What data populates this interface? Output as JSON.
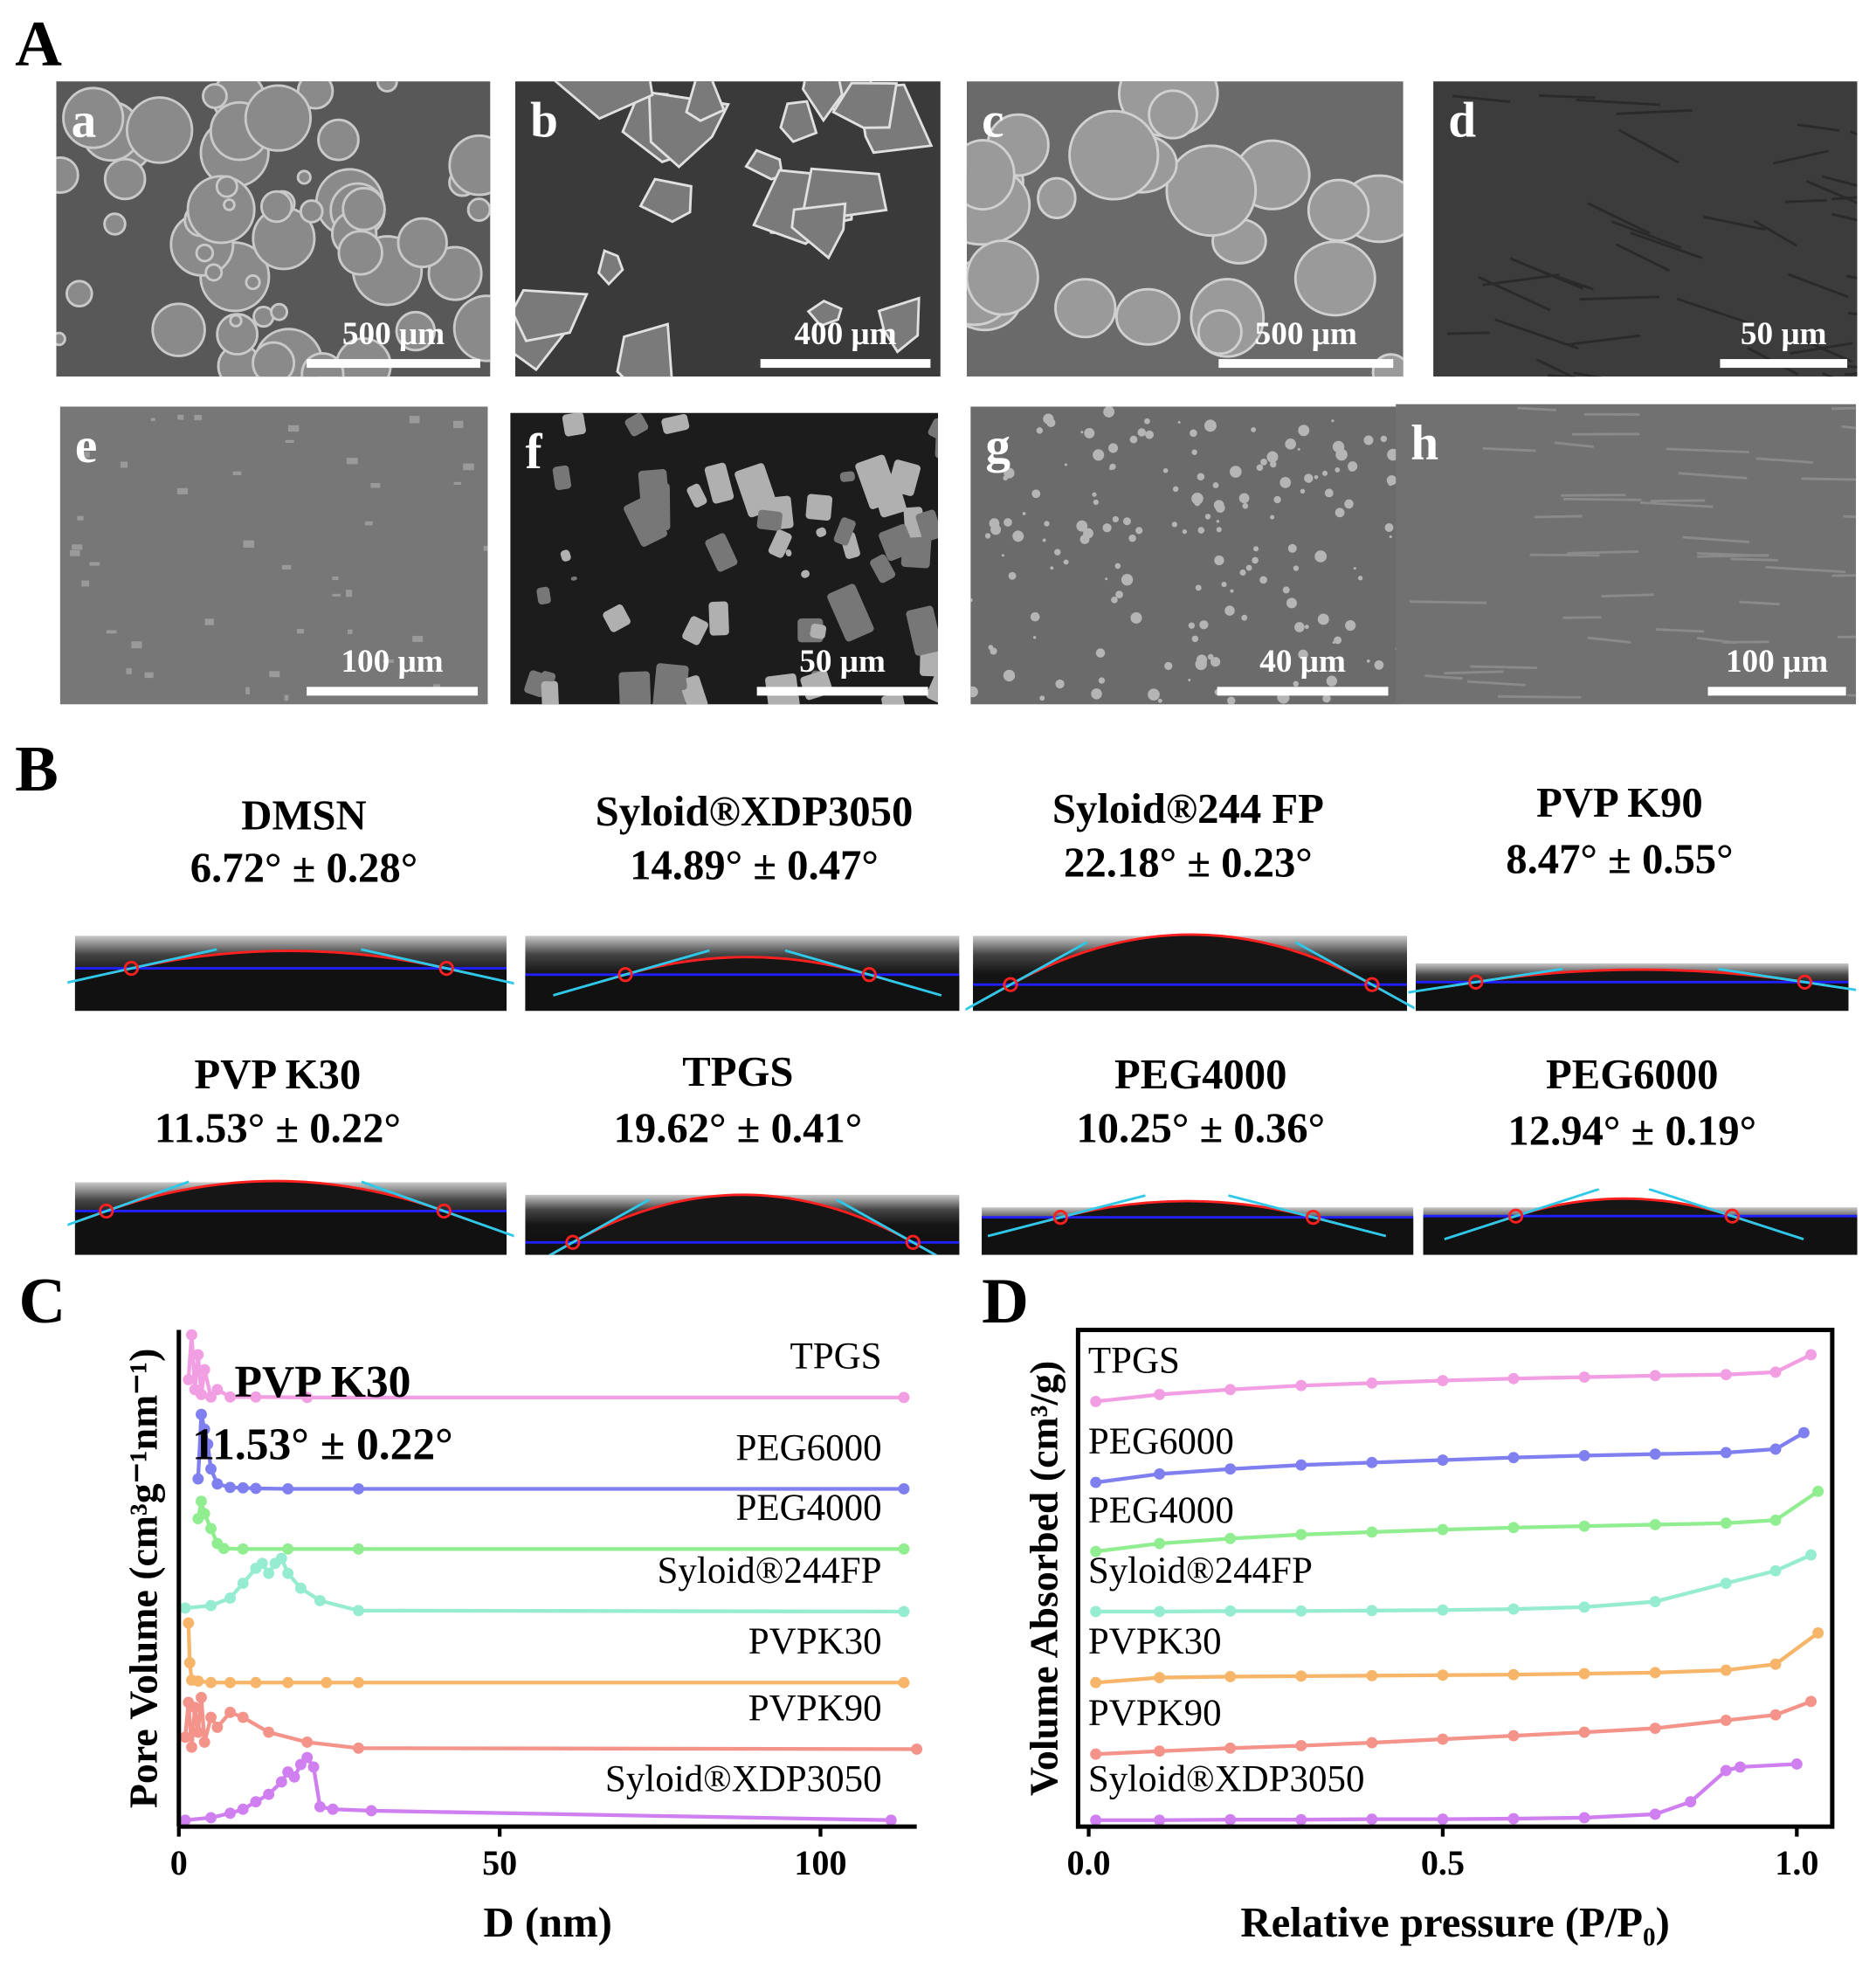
{
  "panel_labels": [
    "A",
    "B",
    "C",
    "D"
  ],
  "sem_images": [
    {
      "label": "a",
      "scale_bar": "500 μm"
    },
    {
      "label": "b",
      "scale_bar": "400 μm"
    },
    {
      "label": "c",
      "scale_bar": "500 μm"
    },
    {
      "label": "d",
      "scale_bar": "50 μm"
    },
    {
      "label": "e",
      "scale_bar": "100 μm"
    },
    {
      "label": "f",
      "scale_bar": "50 μm"
    },
    {
      "label": "g",
      "scale_bar": "40 μm"
    },
    {
      "label": "h",
      "scale_bar": "100 μm"
    }
  ],
  "contact_angles": [
    {
      "name": "DMSN",
      "angle": "6.72° ± 0.28°"
    },
    {
      "name": "Syloid®XDP3050",
      "angle": "14.89° ± 0.47°"
    },
    {
      "name": "Syloid®244 FP",
      "angle": "22.18° ± 0.23°"
    },
    {
      "name": "PVP K90",
      "angle": "8.47° ± 0.55°"
    },
    {
      "name": "PVP K30",
      "angle": "11.53° ± 0.22°"
    },
    {
      "name": "TPGS",
      "angle": "19.62° ± 0.41°"
    },
    {
      "name": "PEG4000",
      "angle": "10.25° ± 0.36°"
    },
    {
      "name": "PEG6000",
      "angle": "12.94° ± 0.19°"
    }
  ],
  "chart_data": [
    {
      "type": "line",
      "xlabel": "D (nm)",
      "ylabel": "Pore Volume (cm³g⁻¹nm⁻¹)",
      "xlim": [
        0,
        115
      ],
      "xticks": [
        0,
        50,
        100
      ],
      "ylim": [
        0,
        100
      ],
      "annotations": [
        "PVP K30",
        "11.53° ± 0.22°"
      ],
      "series": [
        {
          "name": "TPGS",
          "color": "#f29ee3",
          "x": [
            1.5,
            2,
            2.5,
            3,
            3.5,
            4,
            5,
            6,
            8,
            12,
            20,
            113
          ],
          "values": [
            90,
            99,
            88,
            95,
            87,
            92,
            86.5,
            88,
            86.5,
            86.5,
            86.4,
            86.4
          ]
        },
        {
          "name": "PEG6000",
          "color": "#7f7ff0",
          "x": [
            3,
            3.5,
            4,
            4.5,
            5,
            6,
            8,
            10,
            12,
            17,
            28,
            113
          ],
          "values": [
            70,
            83,
            80,
            77,
            72,
            69,
            68.3,
            68.2,
            68.1,
            68,
            68,
            68
          ]
        },
        {
          "name": "PEG4000",
          "color": "#90ee90",
          "x": [
            3,
            3.5,
            4,
            5,
            6,
            7,
            10,
            17,
            28,
            113
          ],
          "values": [
            62,
            65.5,
            63,
            60,
            57,
            56,
            55.9,
            55.9,
            55.9,
            55.9
          ]
        },
        {
          "name": "Syloid®244FP",
          "color": "#96ecd0",
          "x": [
            1,
            5,
            8,
            10,
            12,
            13,
            14,
            15,
            16,
            17,
            19,
            22,
            28,
            113
          ],
          "values": [
            44,
            44.5,
            46,
            49,
            52,
            53,
            51,
            53,
            54,
            51,
            48,
            45.5,
            43.5,
            43.3
          ]
        },
        {
          "name": "PVPK30",
          "color": "#f7b56a",
          "x": [
            1.5,
            1.7,
            2,
            3,
            5,
            8,
            12,
            17,
            23,
            28,
            113
          ],
          "values": [
            41,
            33,
            29.5,
            29.3,
            29,
            29,
            29,
            29,
            29,
            29,
            29
          ]
        },
        {
          "name": "PVPK90",
          "color": "#f4938a",
          "x": [
            1,
            1.5,
            2,
            2.5,
            3,
            3.5,
            4,
            5,
            6,
            8,
            10,
            14,
            20,
            28,
            115
          ],
          "values": [
            18,
            25,
            16,
            24,
            19,
            26,
            17,
            22,
            20,
            23,
            22,
            19,
            17,
            15.8,
            15.6
          ]
        },
        {
          "name": "Syloid®XDP3050",
          "color": "#d07ff0",
          "x": [
            1,
            5,
            8,
            10,
            12,
            14,
            16,
            17,
            18,
            19,
            20,
            21,
            22,
            24,
            30,
            111
          ],
          "values": [
            1.3,
            1.8,
            2.7,
            3.5,
            5,
            6.5,
            9,
            11,
            10,
            12.5,
            13.9,
            12,
            4,
            3.5,
            3.2,
            1.3
          ]
        }
      ]
    },
    {
      "type": "line",
      "xlabel": "Relative pressure (P/P₀)",
      "ylabel": "Volume Absorbed (cm³/g)",
      "xlim": [
        -0.015,
        1.05
      ],
      "xticks": [
        {
          "value": 0,
          "label": "0.0"
        },
        0.5,
        {
          "value": 1,
          "label": "1.0"
        }
      ],
      "ylim": [
        0,
        100
      ],
      "series": [
        {
          "name": "TPGS",
          "color": "#f29ee3",
          "x": [
            0.01,
            0.1,
            0.2,
            0.3,
            0.4,
            0.5,
            0.6,
            0.7,
            0.8,
            0.9,
            0.97,
            1.02
          ],
          "values": [
            85.6,
            87,
            88,
            88.8,
            89.3,
            89.8,
            90.2,
            90.5,
            90.8,
            91,
            91.5,
            95
          ]
        },
        {
          "name": "PEG6000",
          "color": "#7f7ff0",
          "x": [
            0.01,
            0.1,
            0.2,
            0.3,
            0.4,
            0.5,
            0.6,
            0.7,
            0.8,
            0.9,
            0.97,
            1.01
          ],
          "values": [
            69.3,
            71,
            72,
            72.8,
            73.3,
            73.8,
            74.3,
            74.7,
            75,
            75.3,
            76,
            79.3
          ]
        },
        {
          "name": "PEG4000",
          "color": "#90ee90",
          "x": [
            0.01,
            0.1,
            0.2,
            0.3,
            0.4,
            0.5,
            0.6,
            0.7,
            0.8,
            0.9,
            0.97,
            1.03
          ],
          "values": [
            55.4,
            57,
            58,
            58.8,
            59.3,
            59.8,
            60.2,
            60.5,
            60.8,
            61.1,
            61.7,
            67.5
          ]
        },
        {
          "name": "Syloid®244FP",
          "color": "#96ecd0",
          "x": [
            0.01,
            0.1,
            0.2,
            0.3,
            0.4,
            0.5,
            0.6,
            0.7,
            0.8,
            0.9,
            0.97,
            1.02
          ],
          "values": [
            43.3,
            43.3,
            43.4,
            43.4,
            43.5,
            43.6,
            43.8,
            44.2,
            45.3,
            49,
            51.5,
            54.7
          ]
        },
        {
          "name": "PVPK30",
          "color": "#f7b56a",
          "x": [
            0.01,
            0.1,
            0.2,
            0.3,
            0.4,
            0.5,
            0.6,
            0.7,
            0.8,
            0.9,
            0.97,
            1.03
          ],
          "values": [
            29,
            30,
            30.2,
            30.3,
            30.4,
            30.5,
            30.6,
            30.8,
            31,
            31.5,
            32.7,
            39
          ]
        },
        {
          "name": "PVPK90",
          "color": "#f4938a",
          "x": [
            0.01,
            0.1,
            0.2,
            0.3,
            0.4,
            0.5,
            0.6,
            0.7,
            0.8,
            0.9,
            0.97,
            1.02
          ],
          "values": [
            14.6,
            15.2,
            15.8,
            16.3,
            16.9,
            17.6,
            18.3,
            19,
            19.8,
            21.4,
            22.5,
            25.2
          ]
        },
        {
          "name": "Syloid®XDP3050",
          "color": "#d07ff0",
          "x": [
            0.01,
            0.1,
            0.2,
            0.3,
            0.4,
            0.5,
            0.6,
            0.7,
            0.8,
            0.85,
            0.9,
            0.92,
            1.0
          ],
          "values": [
            1.3,
            1.3,
            1.4,
            1.4,
            1.5,
            1.5,
            1.6,
            1.8,
            2.5,
            5,
            11.3,
            12,
            12.6
          ]
        }
      ]
    }
  ]
}
